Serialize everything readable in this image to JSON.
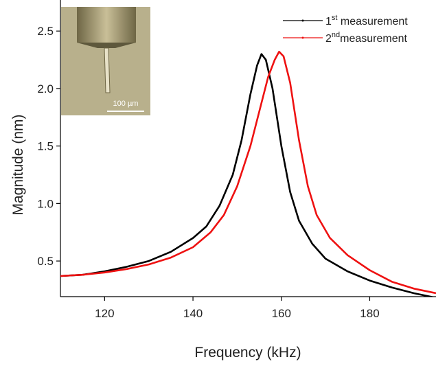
{
  "chart_data": {
    "type": "line",
    "x_label": "Frequency (kHz)",
    "y_label": "Magnitude (nm)",
    "xlim": [
      110,
      195
    ],
    "xticks": [
      120,
      140,
      160,
      180
    ],
    "ylim": [
      0.19,
      2.77
    ],
    "yticks": [
      0.5,
      {
        "value": 1,
        "label": "1.0"
      },
      1.5,
      {
        "value": 2,
        "label": "2.0"
      },
      2.5
    ],
    "inset_scale_label": "100 µm",
    "legend": "upper right",
    "series": [
      {
        "name": "1st measurement",
        "color": "#000000",
        "x": [
          110,
          115,
          120,
          125,
          130,
          135,
          140,
          143,
          146,
          149,
          151,
          153,
          154.5,
          155.5,
          156.5,
          158,
          160,
          162,
          164,
          167,
          170,
          175,
          180,
          185,
          190,
          195
        ],
        "values": [
          0.37,
          0.38,
          0.41,
          0.45,
          0.5,
          0.58,
          0.7,
          0.8,
          0.98,
          1.25,
          1.55,
          1.95,
          2.2,
          2.3,
          2.25,
          2.0,
          1.5,
          1.1,
          0.85,
          0.65,
          0.52,
          0.41,
          0.33,
          0.27,
          0.22,
          0.18
        ]
      },
      {
        "name": "2ndmeasurement",
        "color": "#ee1111",
        "x": [
          110,
          115,
          120,
          125,
          130,
          135,
          140,
          144,
          147,
          150,
          153,
          155,
          157,
          158.5,
          159.5,
          160.5,
          162,
          164,
          166,
          168,
          171,
          175,
          180,
          185,
          190,
          195
        ],
        "values": [
          0.37,
          0.38,
          0.4,
          0.43,
          0.47,
          0.53,
          0.62,
          0.75,
          0.9,
          1.15,
          1.5,
          1.8,
          2.1,
          2.25,
          2.32,
          2.28,
          2.05,
          1.55,
          1.15,
          0.9,
          0.7,
          0.55,
          0.42,
          0.32,
          0.26,
          0.22
        ]
      }
    ]
  }
}
